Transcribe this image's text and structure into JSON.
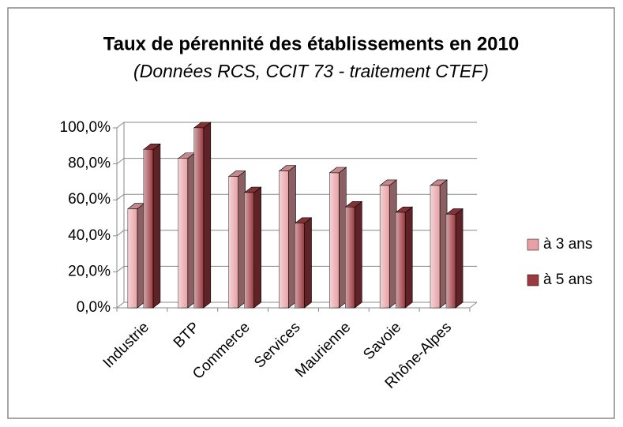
{
  "chart_data": {
    "type": "bar3d",
    "title": "Taux de pérennité des établissements en 2010",
    "subtitle": "(Données RCS, CCIT 73 - traitement CTEF)",
    "categories": [
      "Industrie",
      "BTP",
      "Commerce",
      "Services",
      "Maurienne",
      "Savoie",
      "Rhône-Alpes"
    ],
    "series": [
      {
        "name": "à 3 ans",
        "color": "#e8a0a4",
        "values": [
          55,
          83,
          73,
          76,
          75,
          68,
          68
        ]
      },
      {
        "name": "à 5 ans",
        "color": "#9b3a40",
        "values": [
          88,
          100,
          64,
          47,
          56,
          53,
          52
        ]
      }
    ],
    "ylim": [
      0,
      100
    ],
    "yticks": [
      {
        "value": 0,
        "label": "0,0%"
      },
      {
        "value": 20,
        "label": "20,0%"
      },
      {
        "value": 40,
        "label": "40,0%"
      },
      {
        "value": 60,
        "label": "60,0%"
      },
      {
        "value": 80,
        "label": "80,0%"
      },
      {
        "value": 100,
        "label": "100,0%"
      }
    ],
    "grid": true,
    "legend": "right"
  }
}
